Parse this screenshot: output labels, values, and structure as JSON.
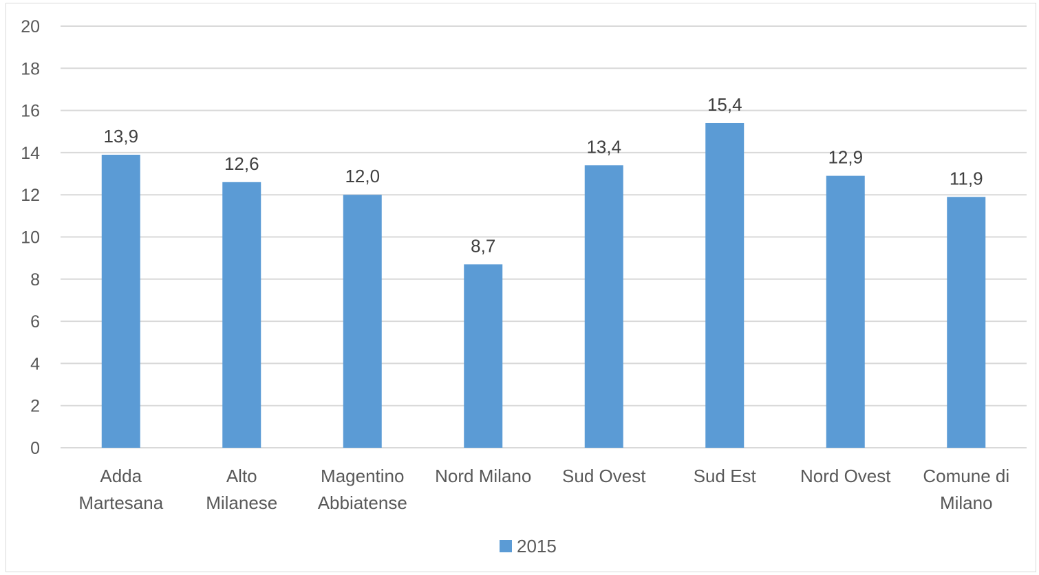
{
  "chart_data": {
    "type": "bar",
    "categories": [
      [
        "Adda",
        "Martesana"
      ],
      [
        "Alto",
        "Milanese"
      ],
      [
        "Magentino",
        "Abbiatense"
      ],
      [
        "Nord Milano"
      ],
      [
        "Sud Ovest"
      ],
      [
        "Sud Est"
      ],
      [
        "Nord Ovest"
      ],
      [
        "Comune di",
        "Milano"
      ]
    ],
    "series": [
      {
        "name": "2015",
        "values": [
          13.9,
          12.6,
          12.0,
          8.7,
          13.4,
          15.4,
          12.9,
          11.9
        ],
        "labels": [
          "13,9",
          "12,6",
          "12,0",
          "8,7",
          "13,4",
          "15,4",
          "12,9",
          "11,9"
        ],
        "color": "#5b9bd5"
      }
    ],
    "ylim": [
      0,
      20
    ],
    "yticks": [
      0,
      2,
      4,
      6,
      8,
      10,
      12,
      14,
      16,
      18,
      20
    ],
    "grid": true,
    "legend": "bottom",
    "gridColor": "#d9d9d9",
    "textColor": "#595959"
  }
}
